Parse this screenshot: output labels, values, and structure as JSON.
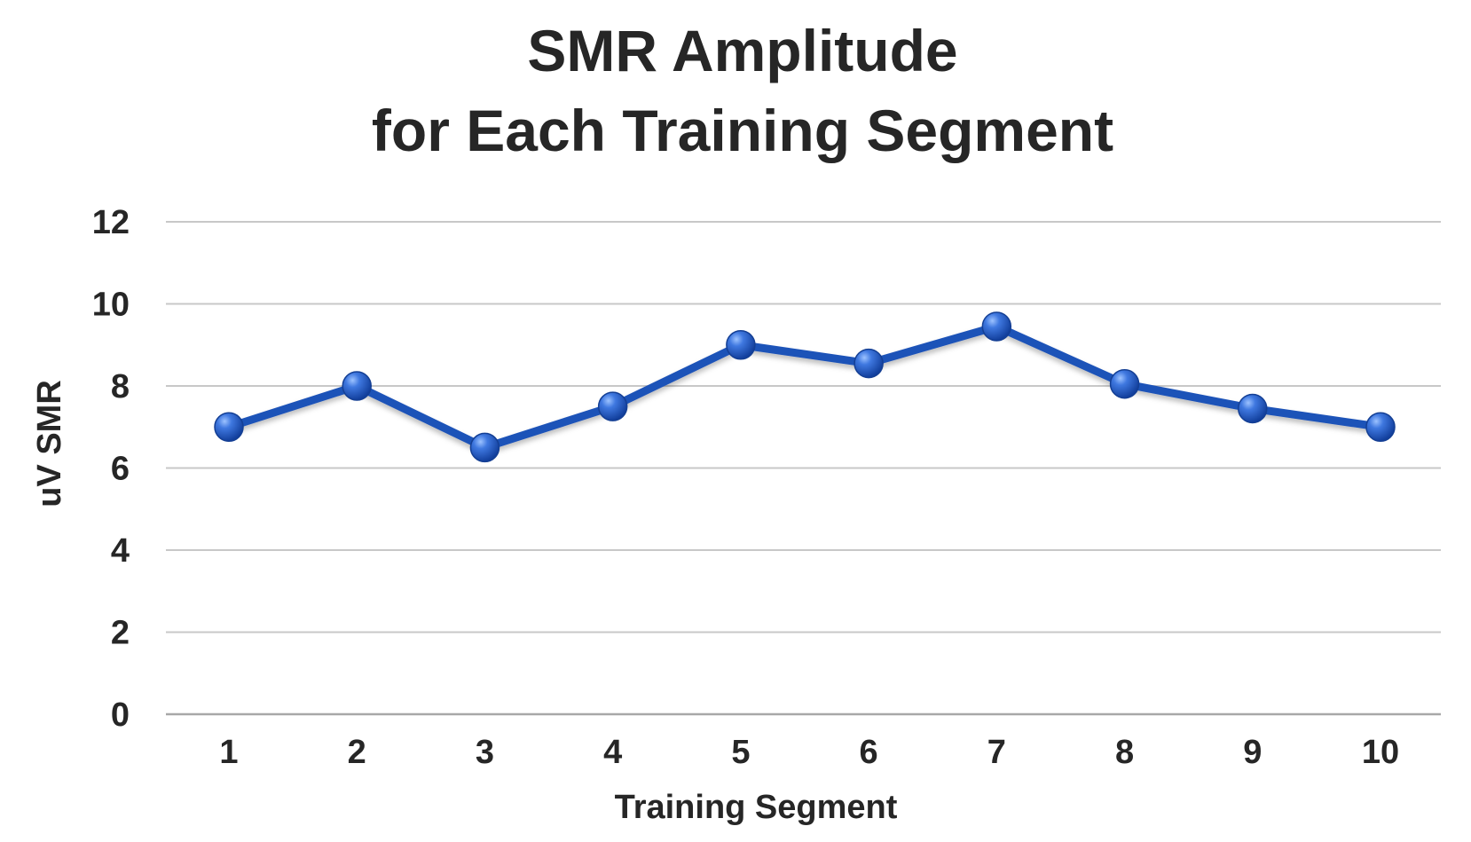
{
  "chart_data": {
    "type": "line",
    "title_lines": [
      "SMR Amplitude",
      "for Each Training Segment"
    ],
    "xlabel": "Training Segment",
    "ylabel": "uV SMR",
    "categories": [
      "1",
      "2",
      "3",
      "4",
      "5",
      "6",
      "7",
      "8",
      "9",
      "10"
    ],
    "series": [
      {
        "values": [
          7.0,
          8.0,
          6.5,
          7.5,
          9.0,
          8.55,
          9.45,
          8.05,
          7.45,
          7.0
        ],
        "color": "#1f52b8"
      }
    ],
    "ylim": [
      0,
      12
    ],
    "yticks": [
      "0",
      "2",
      "4",
      "6",
      "8",
      "10",
      "12"
    ],
    "grid": true,
    "legend": "none"
  }
}
